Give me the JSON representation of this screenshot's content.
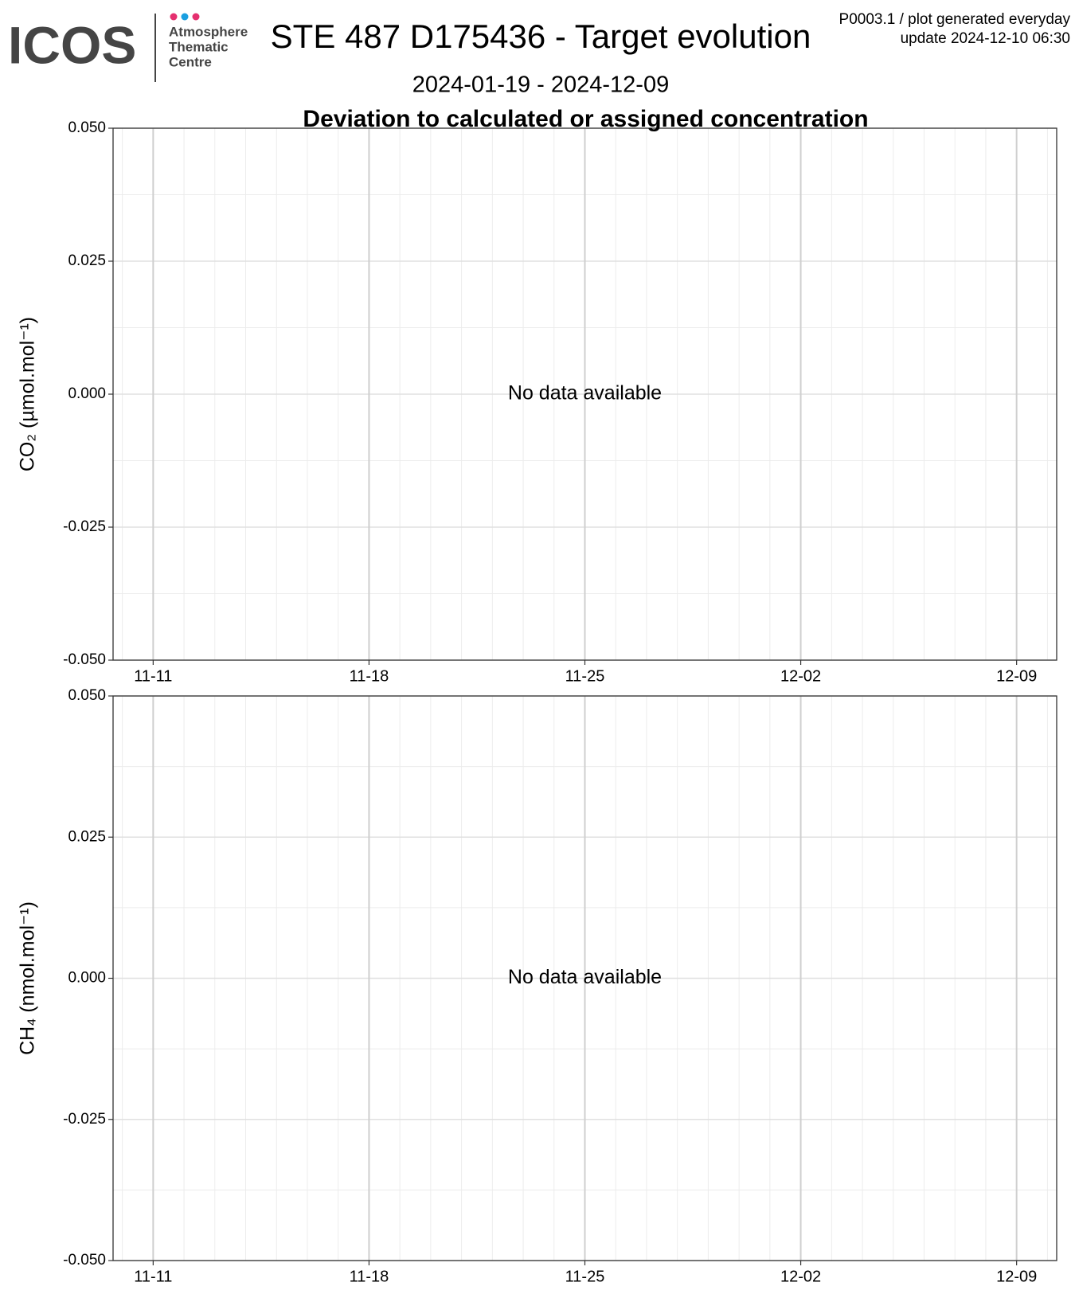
{
  "header": {
    "logo": "ICOS",
    "logo_lines": [
      "Atmosphere",
      "Thematic",
      "Centre"
    ],
    "title": "STE 487 D175436 - Target evolution",
    "subtitle": "2024-01-19 - 2024-12-09",
    "note_lines": [
      "P0003.1 / plot generated everyday",
      "update  2024-12-10 06:30"
    ]
  },
  "chart_data": [
    {
      "type": "line",
      "title": "Deviation to calculated or assigned concentration",
      "y_label": "CO₂ (µmol.mol⁻¹)",
      "annotation": "No data available",
      "xticks": [
        "11-11",
        "11-18",
        "11-25",
        "12-02",
        "12-09"
      ],
      "ylim": [
        -0.05,
        0.05
      ],
      "yticks": [
        {
          "value": -0.05,
          "label": "-0.050"
        },
        {
          "value": -0.025,
          "label": "-0.025"
        },
        {
          "value": 0,
          "label": "0.000"
        },
        {
          "value": 0.025,
          "label": "0.025"
        },
        {
          "value": 0.05,
          "label": "0.050"
        }
      ],
      "grid": true
    },
    {
      "type": "line",
      "y_label": "CH₄ (nmol.mol⁻¹)",
      "annotation": "No data available",
      "xticks": [
        "11-11",
        "11-18",
        "11-25",
        "12-02",
        "12-09"
      ],
      "ylim": [
        -0.05,
        0.05
      ],
      "yticks": [
        {
          "value": -0.05,
          "label": "-0.050"
        },
        {
          "value": -0.025,
          "label": "-0.025"
        },
        {
          "value": 0,
          "label": "0.000"
        },
        {
          "value": 0.025,
          "label": "0.025"
        },
        {
          "value": 0.05,
          "label": "0.050"
        }
      ],
      "grid": true
    }
  ]
}
